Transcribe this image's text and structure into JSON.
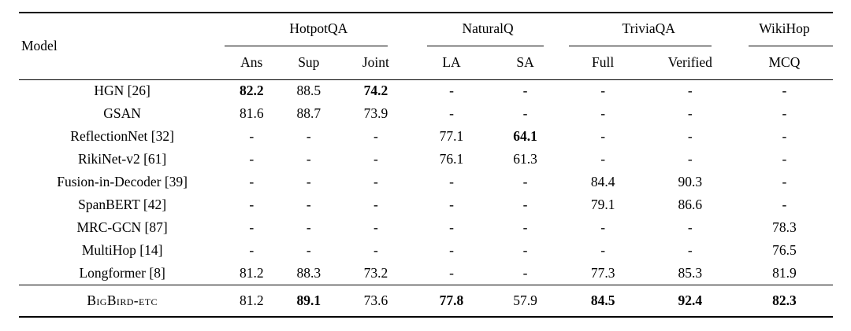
{
  "table": {
    "model_header": "Model",
    "groups": [
      {
        "label": "HotpotQA",
        "columns": [
          "Ans",
          "Sup",
          "Joint"
        ]
      },
      {
        "label": "NaturalQ",
        "columns": [
          "LA",
          "SA"
        ]
      },
      {
        "label": "TriviaQA",
        "columns": [
          "Full",
          "Verified"
        ]
      },
      {
        "label": "WikiHop",
        "columns": [
          "MCQ"
        ]
      }
    ],
    "subcolumns": [
      "Ans",
      "Sup",
      "Joint",
      "LA",
      "SA",
      "Full",
      "Verified",
      "MCQ"
    ],
    "rows": [
      {
        "model": "HGN [26]",
        "cells": [
          "82.2",
          "88.5",
          "74.2",
          "-",
          "-",
          "-",
          "-",
          "-"
        ],
        "bold_value_indices": [
          0,
          2
        ]
      },
      {
        "model": "GSAN",
        "cells": [
          "81.6",
          "88.7",
          "73.9",
          "-",
          "-",
          "-",
          "-",
          "-"
        ],
        "bold_value_indices": []
      },
      {
        "model": "ReflectionNet [32]",
        "cells": [
          "-",
          "-",
          "-",
          "77.1",
          "64.1",
          "-",
          "-",
          "-"
        ],
        "bold_value_indices": [
          4
        ]
      },
      {
        "model": "RikiNet-v2 [61]",
        "cells": [
          "-",
          "-",
          "-",
          "76.1",
          "61.3",
          "-",
          "-",
          "-"
        ],
        "bold_value_indices": []
      },
      {
        "model": "Fusion-in-Decoder [39]",
        "cells": [
          "-",
          "-",
          "-",
          "-",
          "-",
          "84.4",
          "90.3",
          "-"
        ],
        "bold_value_indices": []
      },
      {
        "model": "SpanBERT [42]",
        "cells": [
          "-",
          "-",
          "-",
          "-",
          "-",
          "79.1",
          "86.6",
          "-"
        ],
        "bold_value_indices": []
      },
      {
        "model": "MRC-GCN [87]",
        "cells": [
          "-",
          "-",
          "-",
          "-",
          "-",
          "-",
          "-",
          "78.3"
        ],
        "bold_value_indices": []
      },
      {
        "model": "MultiHop [14]",
        "cells": [
          "-",
          "-",
          "-",
          "-",
          "-",
          "-",
          "-",
          "76.5"
        ],
        "bold_value_indices": []
      },
      {
        "model": "Longformer [8]",
        "cells": [
          "81.2",
          "88.3",
          "73.2",
          "-",
          "-",
          "77.3",
          "85.3",
          "81.9"
        ],
        "bold_value_indices": []
      }
    ],
    "final_row": {
      "model": "BigBird-etc",
      "cells": [
        "81.2",
        "89.1",
        "73.6",
        "77.8",
        "57.9",
        "84.5",
        "92.4",
        "82.3"
      ],
      "bold_value_indices": [
        1,
        3,
        5,
        6,
        7
      ]
    },
    "colors": {
      "text": "#000000",
      "background": "#ffffff",
      "rule": "#000000"
    }
  }
}
